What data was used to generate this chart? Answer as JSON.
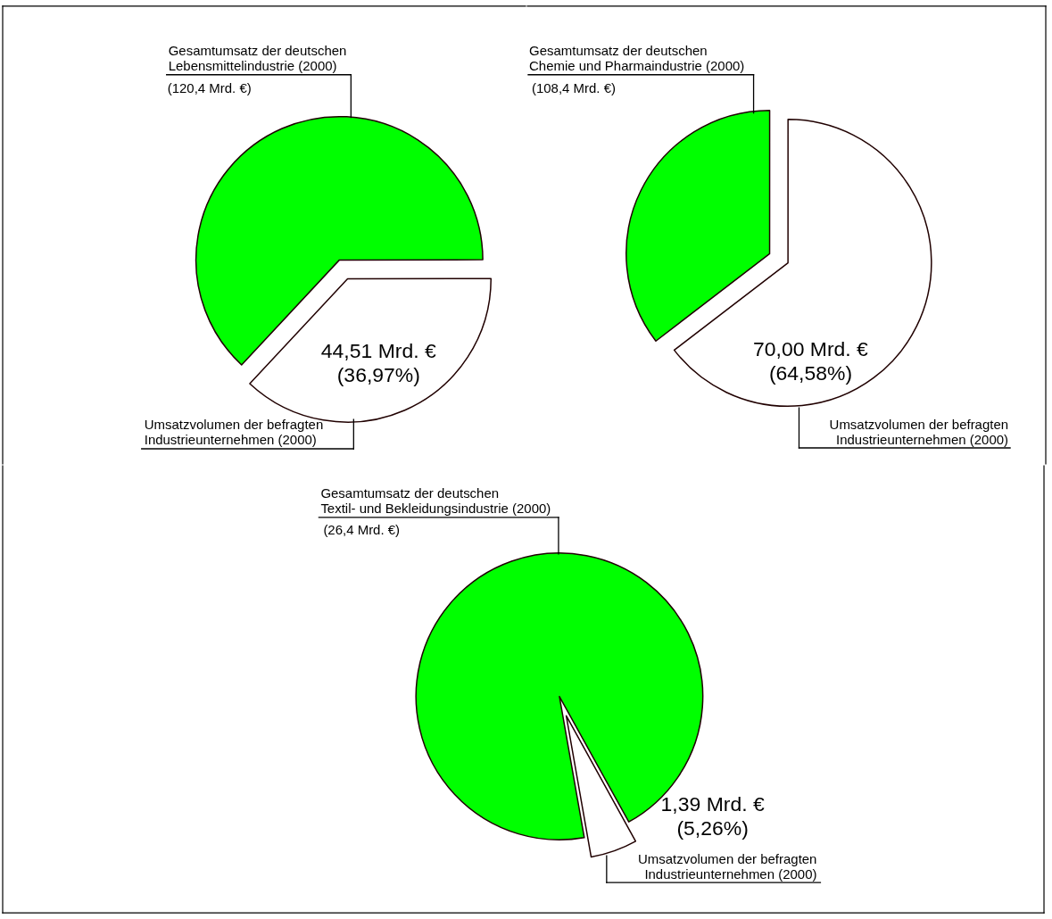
{
  "chart_data": [
    {
      "type": "pie",
      "categories": [
        "Gesamtumsatz der deutschen\nLebensmittelindustrie (2000)",
        "Umsatzvolumen der befragten\nIndustrieunternehmen (2000)"
      ],
      "values": [
        63.03,
        36.97
      ],
      "colors": [
        "#00ff00",
        "#ffffff"
      ],
      "value_labels": [
        null,
        "44,51 Mrd. €\n(36,97%)"
      ],
      "annotations": [
        "(120,4 Mrd. €)"
      ]
    },
    {
      "type": "pie",
      "categories": [
        "Gesamtumsatz der deutschen\nChemie und Pharmaindustrie (2000)",
        "Umsatzvolumen der befragten\nIndustrieunternehmen (2000)"
      ],
      "values": [
        35.42,
        64.58
      ],
      "colors": [
        "#00ff00",
        "#ffffff"
      ],
      "value_labels": [
        null,
        "70,00 Mrd. €\n(64,58%)"
      ],
      "annotations": [
        "(108,4 Mrd. €)"
      ]
    },
    {
      "type": "pie",
      "categories": [
        "Gesamtumsatz der deutschen\nTextil- und Bekleidungsindustrie (2000)",
        "Umsatzvolumen der befragten\nIndustrieunternehmen (2000)"
      ],
      "values": [
        94.74,
        5.26
      ],
      "colors": [
        "#00ff00",
        "#ffffff"
      ],
      "value_labels": [
        null,
        "1,39 Mrd. €\n(5,26%)"
      ],
      "annotations": [
        "(26,4 Mrd. €)"
      ]
    }
  ]
}
